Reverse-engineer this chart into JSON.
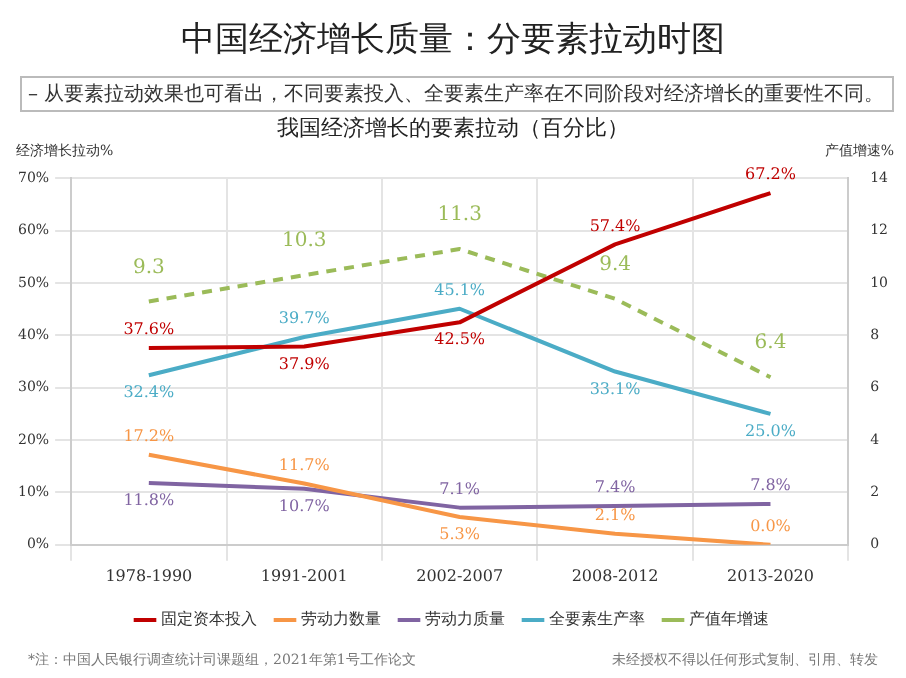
{
  "chart_data": {
    "type": "line",
    "title": "我国经济增长的要素拉动（百分比）",
    "ylabel": "经济增长拉动%",
    "y2label": "产值增速%",
    "annotations": [
      "中国经济增长质量：分要素拉动时图",
      "–  从要素拉动效果也可看出，不同要素投入、全要素生产率在不同阶段对经济增长的重要性不同。",
      "*注：中国人民银行调查统计司课题组，2021年第1号工作论文",
      "未经授权不得以任何形式复制、引用、转发"
    ],
    "categories": [
      "1978-1990",
      "1991-2001",
      "2002-2007",
      "2008-2012",
      "2013-2020"
    ],
    "series": [
      {
        "name": "固定资本投入",
        "color": "#c00000",
        "values": [
          37.6,
          37.9,
          42.5,
          57.4,
          67.2
        ],
        "value_labels": [
          "37.6%",
          "37.9%",
          "42.5%",
          "57.4%",
          "67.2%"
        ]
      },
      {
        "name": "劳动力数量",
        "color": "#f79646",
        "values": [
          17.2,
          11.7,
          5.3,
          2.1,
          0.0
        ],
        "value_labels": [
          "17.2%",
          "11.7%",
          "5.3%",
          "2.1%",
          "0.0%"
        ]
      },
      {
        "name": "劳动力质量",
        "color": "#8064a2",
        "values": [
          11.8,
          10.7,
          7.1,
          7.4,
          7.8
        ],
        "value_labels": [
          "11.8%",
          "10.7%",
          "7.1%",
          "7.4%",
          "7.8%"
        ]
      },
      {
        "name": "全要素生产率",
        "color": "#4bacc6",
        "values": [
          32.4,
          39.7,
          45.1,
          33.1,
          25.0
        ],
        "value_labels": [
          "32.4%",
          "39.7%",
          "45.1%",
          "33.1%",
          "25.0%"
        ]
      },
      {
        "name": "产值年增速",
        "color": "#9bbb59",
        "axis": "y2",
        "line_style": "dashed",
        "values": [
          9.3,
          10.3,
          11.3,
          9.4,
          6.4
        ],
        "value_labels": [
          "9.3",
          "10.3",
          "11.3",
          "9.4",
          "6.4"
        ]
      }
    ],
    "ylim": [
      0,
      70
    ],
    "yticks": [
      {
        "value": 0,
        "label": "0%"
      },
      {
        "value": 10,
        "label": "10%"
      },
      {
        "value": 20,
        "label": "20%"
      },
      {
        "value": 30,
        "label": "30%"
      },
      {
        "value": 40,
        "label": "40%"
      },
      {
        "value": 50,
        "label": "50%"
      },
      {
        "value": 60,
        "label": "60%"
      },
      {
        "value": 70,
        "label": "70%"
      }
    ],
    "y2lim": [
      0,
      14
    ],
    "y2ticks": [
      0,
      2,
      4,
      6,
      8,
      10,
      12,
      14
    ],
    "grid": true,
    "legend": "bottom",
    "marker": "none",
    "line_style": "solid"
  }
}
